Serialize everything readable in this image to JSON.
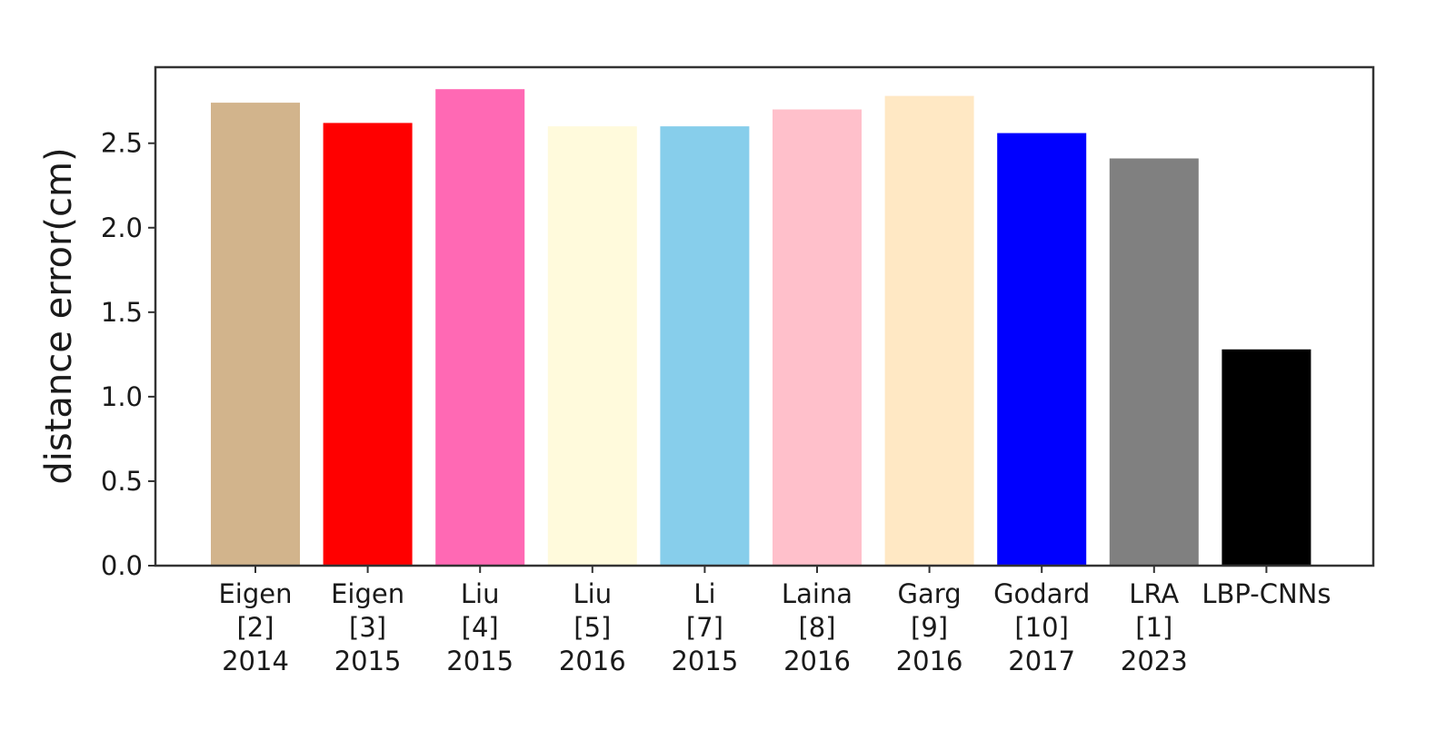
{
  "chart_data": {
    "type": "bar",
    "title": "",
    "xlabel": "",
    "ylabel": "distance error(cm)",
    "ylim": [
      0,
      2.95
    ],
    "yticks": [
      "0.0",
      "0.5",
      "1.0",
      "1.5",
      "2.0",
      "2.5"
    ],
    "ytick_values": [
      0,
      0.5,
      1.0,
      1.5,
      2.0,
      2.5
    ],
    "grid": false,
    "legend": "none",
    "categories": [
      "Eigen\n[2]\n2014",
      "Eigen\n[3]\n2015",
      "Liu\n[4]\n2015",
      "Liu\n[5]\n2016",
      "Li\n[7]\n2015",
      "Laina\n[8]\n2016",
      "Garg\n[9]\n2016",
      "Godard\n[10]\n2017",
      "LRA\n[1]\n2023",
      "LBP-CNNs"
    ],
    "values": [
      2.74,
      2.62,
      2.82,
      2.6,
      2.6,
      2.7,
      2.78,
      2.56,
      2.41,
      1.28
    ],
    "colors": [
      "#d2b48c",
      "#ff0000",
      "#ff69b4",
      "#fffadc",
      "#87ceeb",
      "#ffc0cb",
      "#ffe8c4",
      "#0000ff",
      "#808080",
      "#000000"
    ]
  }
}
